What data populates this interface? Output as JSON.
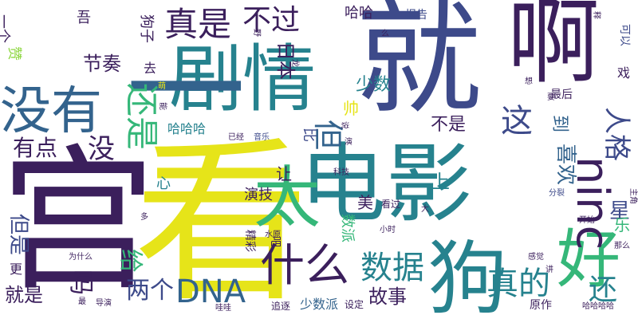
{
  "palette": {
    "background": "#ffffff",
    "dark_purple": "#3b1f5c",
    "indigo": "#3d4a8a",
    "blue": "#33638d",
    "teal": "#26828e",
    "green": "#35b779",
    "lime": "#8fd744",
    "yellow": "#e6e419"
  },
  "words": [
    "就",
    "啊",
    "电影",
    "看",
    "宫",
    "剧情",
    "没有",
    "不过",
    "真是",
    "一",
    "太",
    "什么",
    "好",
    "狗",
    "数据",
    "还是",
    "ninc",
    "人格",
    "喜欢",
    "不是",
    "两个",
    "DNA",
    "真的",
    "还",
    "故事",
    "音乐",
    "但",
    "有点",
    "没",
    "这",
    "吾",
    "哈哈",
    "日本",
    "少数",
    "节奏",
    "给",
    "演技",
    "星",
    "到",
    "让",
    "美",
    "上",
    "吗",
    "精彩",
    "数派",
    "少数派",
    "原作",
    "最后",
    "哈哈哈",
    "哈哈哈哈",
    "赞",
    "更",
    "就是",
    "但是",
    "帅",
    "科技",
    "看过",
    "报告",
    "戏",
    "可以",
    "分裂",
    "主角",
    "开始",
    "感觉",
    "那么",
    "追逐",
    "导演",
    "为什么",
    "水原",
    "小时",
    "去",
    "么",
    "野",
    "想",
    "能",
    "萌",
    "已经",
    "吧",
    "说",
    "大",
    "多",
    "讲",
    "设定",
    "要",
    "最",
    "释",
    "比",
    "一个",
    "乐",
    "狗子",
    "心",
    "演",
    "哇哇",
    "龙"
  ]
}
